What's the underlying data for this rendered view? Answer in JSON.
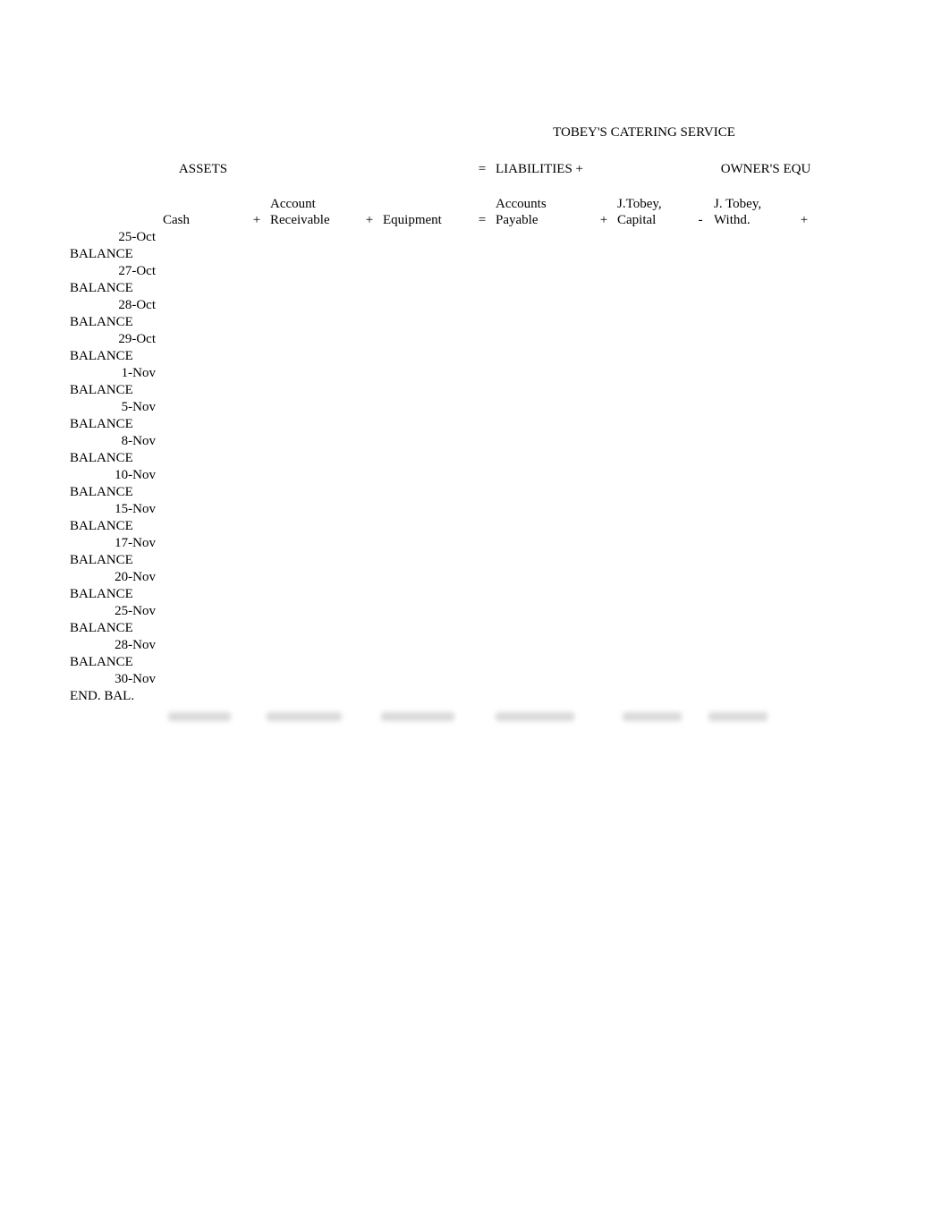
{
  "title": "TOBEY'S CATERING SERVICE",
  "categories": {
    "assets": "ASSETS",
    "eq1": "=",
    "liabilities": "LIABILITIES +",
    "owners_equity": "OWNER'S EQU"
  },
  "headers": {
    "cash": "Cash",
    "op1": "+",
    "account_receivable_l1": "Account",
    "account_receivable_l2": "Receivable",
    "op2": "+",
    "equipment": "Equipment",
    "op3": "=",
    "accounts_payable_l1": "Accounts",
    "accounts_payable_l2": "Payable",
    "op4": "+",
    "capital_l1": "J.Tobey,",
    "capital_l2": "Capital",
    "op5": "-",
    "withd_l1": "J. Tobey,",
    "withd_l2": "Withd.",
    "op6": "+"
  },
  "rows": [
    {
      "type": "date",
      "text": "25-Oct"
    },
    {
      "type": "balance",
      "text": "BALANCE"
    },
    {
      "type": "date",
      "text": "27-Oct"
    },
    {
      "type": "balance",
      "text": "BALANCE"
    },
    {
      "type": "date",
      "text": "28-Oct"
    },
    {
      "type": "balance",
      "text": "BALANCE"
    },
    {
      "type": "date",
      "text": "29-Oct"
    },
    {
      "type": "balance",
      "text": "BALANCE"
    },
    {
      "type": "date",
      "text": "1-Nov"
    },
    {
      "type": "balance",
      "text": "BALANCE"
    },
    {
      "type": "date",
      "text": "5-Nov"
    },
    {
      "type": "balance",
      "text": "BALANCE"
    },
    {
      "type": "date",
      "text": "8-Nov"
    },
    {
      "type": "balance",
      "text": "BALANCE"
    },
    {
      "type": "date",
      "text": "10-Nov"
    },
    {
      "type": "balance",
      "text": "BALANCE"
    },
    {
      "type": "date",
      "text": "15-Nov"
    },
    {
      "type": "balance",
      "text": "BALANCE"
    },
    {
      "type": "date",
      "text": "17-Nov"
    },
    {
      "type": "balance",
      "text": "BALANCE"
    },
    {
      "type": "date",
      "text": "20-Nov"
    },
    {
      "type": "balance",
      "text": "BALANCE"
    },
    {
      "type": "date",
      "text": "25-Nov"
    },
    {
      "type": "balance",
      "text": "BALANCE"
    },
    {
      "type": "date",
      "text": "28-Nov"
    },
    {
      "type": "balance",
      "text": "BALANCE"
    },
    {
      "type": "date",
      "text": "30-Nov"
    },
    {
      "type": "endbal",
      "text": "END. BAL."
    }
  ],
  "colors": {
    "background": "#ffffff",
    "text": "#000000",
    "blur": "#d9d9d9"
  },
  "font_family": "Times New Roman",
  "font_size_pt": 11
}
